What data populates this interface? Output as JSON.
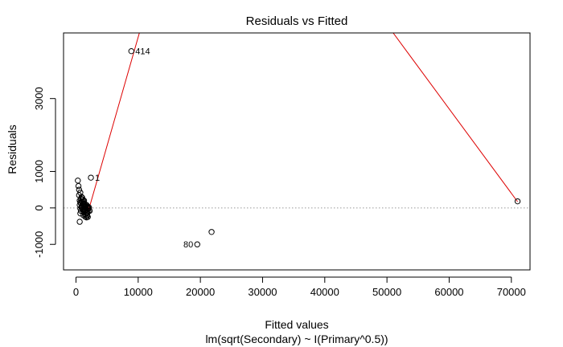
{
  "chart_data": {
    "type": "scatter",
    "title": "Residuals vs Fitted",
    "xlabel": "Fitted values",
    "sublabel": "lm(sqrt(Secondary) ~ I(Primary^0.5))",
    "ylabel": "Residuals",
    "xlim": [
      -2000,
      73000
    ],
    "ylim": [
      -1700,
      4800
    ],
    "x_ticks": [
      0,
      10000,
      20000,
      30000,
      40000,
      50000,
      60000,
      70000
    ],
    "x_tick_labels": [
      "0",
      "10000",
      "20000",
      "30000",
      "40000",
      "50000",
      "60000",
      "70000"
    ],
    "y_ticks": [
      -1000,
      0,
      1000,
      3000
    ],
    "y_tick_labels": [
      "-1000",
      "0",
      "1000",
      "3000"
    ],
    "zero_line": true,
    "points": {
      "x": [
        8900,
        2400,
        300,
        400,
        500,
        700,
        900,
        800,
        600,
        1000,
        1100,
        1200,
        1300,
        1500,
        1700,
        1400,
        1600,
        1800,
        1900,
        2000,
        600,
        700,
        800,
        900,
        1000,
        1100,
        1200,
        1300,
        1400,
        1500,
        1600,
        1700,
        1800,
        1900,
        2000,
        2100,
        700,
        900,
        1100,
        1300,
        1500,
        1700,
        1900,
        500,
        800,
        1200,
        1600,
        1800,
        2200,
        1000,
        1400,
        700,
        1300,
        1700,
        600,
        900,
        1200,
        1500,
        1800,
        19500,
        21800,
        71000
      ],
      "y": [
        4300,
        830,
        750,
        600,
        500,
        420,
        300,
        250,
        200,
        280,
        230,
        180,
        120,
        100,
        80,
        60,
        40,
        20,
        0,
        -20,
        -380,
        -150,
        -80,
        30,
        60,
        -30,
        100,
        50,
        -100,
        -180,
        -60,
        -120,
        -200,
        -250,
        -90,
        10,
        150,
        180,
        -50,
        -60,
        20,
        -150,
        40,
        350,
        120,
        -110,
        -10,
        -210,
        -80,
        160,
        -40,
        -20,
        200,
        -260,
        80,
        10,
        -200,
        -240,
        -130,
        -1000,
        -660,
        180
      ],
      "labels": [
        {
          "index": 0,
          "text": "414",
          "side": "right"
        },
        {
          "index": 1,
          "text": "1",
          "side": "right"
        },
        {
          "index": 59,
          "text": "80",
          "side": "left"
        }
      ]
    },
    "smoother": {
      "x": [
        2200,
        1900,
        1600,
        1300,
        1000,
        800,
        1000,
        1300,
        1600,
        1800,
        2000,
        10200
      ],
      "y": [
        0,
        -40,
        -120,
        -150,
        -60,
        60,
        120,
        40,
        0,
        -60,
        -80,
        4800
      ],
      "upper_segment": {
        "x": [
          51000,
          71000
        ],
        "y": [
          4800,
          170
        ]
      }
    },
    "colors": {
      "points": "#000000",
      "smoother": "#dd0000",
      "zero_line": "#999999",
      "axes": "#000000"
    }
  }
}
